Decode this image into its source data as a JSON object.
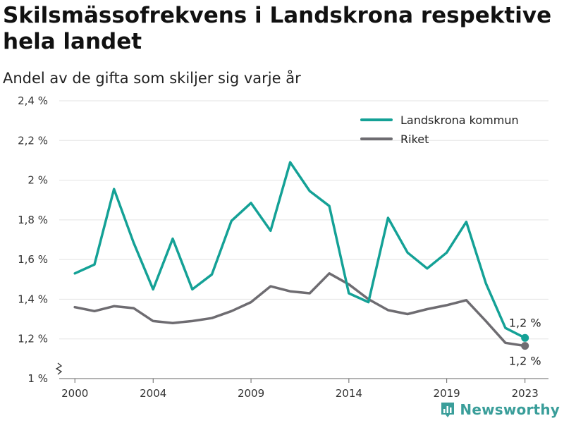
{
  "title": "Skilsmässofrekvens i Landskrona respektive hela landet",
  "subtitle": "Andel av de gifta som skiljer sig varje år",
  "brand": "Newsworthy",
  "chart_data": {
    "type": "line",
    "x": [
      2000,
      2001,
      2002,
      2003,
      2004,
      2005,
      2006,
      2007,
      2008,
      2009,
      2010,
      2011,
      2012,
      2013,
      2014,
      2015,
      2016,
      2017,
      2018,
      2019,
      2020,
      2021,
      2022,
      2023
    ],
    "x_ticks": [
      "2000",
      "2004",
      "2009",
      "2014",
      "2019",
      "2023"
    ],
    "x_tick_values": [
      2000,
      2004,
      2009,
      2014,
      2019,
      2023
    ],
    "y_ticks": [
      "1 %",
      "1,2 %",
      "1,4 %",
      "1,6 %",
      "1,8 %",
      "2 %",
      "2,2 %",
      "2,4 %"
    ],
    "y_tick_values": [
      1.0,
      1.2,
      1.4,
      1.6,
      1.8,
      2.0,
      2.2,
      2.4
    ],
    "ylim": [
      1.0,
      2.4
    ],
    "xlim": [
      1999.2,
      2024.2
    ],
    "y_unit": "%",
    "grid": true,
    "legend_position": "top-right",
    "series": [
      {
        "name": "Landskrona kommun",
        "color": "#14a196",
        "values": [
          1.53,
          1.575,
          1.955,
          1.685,
          1.45,
          1.705,
          1.45,
          1.525,
          1.795,
          1.885,
          1.745,
          2.09,
          1.945,
          1.87,
          1.43,
          1.385,
          1.81,
          1.635,
          1.555,
          1.635,
          1.79,
          1.48,
          1.255,
          1.205
        ],
        "end_label": "1,2 %"
      },
      {
        "name": "Riket",
        "color": "#6e6c71",
        "values": [
          1.36,
          1.34,
          1.365,
          1.355,
          1.29,
          1.28,
          1.29,
          1.305,
          1.34,
          1.385,
          1.465,
          1.44,
          1.43,
          1.53,
          1.475,
          1.4,
          1.345,
          1.325,
          1.35,
          1.37,
          1.395,
          1.29,
          1.18,
          1.165
        ],
        "end_label": "1,2 %"
      }
    ]
  }
}
